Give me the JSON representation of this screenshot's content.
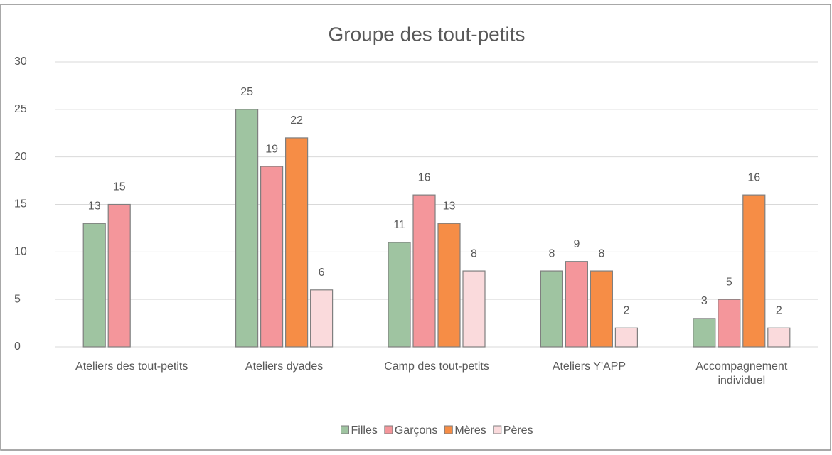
{
  "chart_data": {
    "type": "bar",
    "title": "Groupe des tout-petits",
    "categories": [
      "Ateliers des tout-petits",
      "Ateliers dyades",
      "Camp des tout-petits",
      "Ateliers Y'APP",
      "Accompagnement individuel"
    ],
    "series": [
      {
        "name": "Filles",
        "color": "#9fc4a1",
        "values": [
          13,
          25,
          11,
          8,
          3
        ]
      },
      {
        "name": "Garçons",
        "color": "#f4969b",
        "values": [
          15,
          19,
          16,
          9,
          5
        ]
      },
      {
        "name": "Mères",
        "color": "#f68d46",
        "values": [
          null,
          22,
          13,
          8,
          16
        ]
      },
      {
        "name": "Pères",
        "color": "#fadadc",
        "values": [
          null,
          6,
          8,
          2,
          2
        ]
      }
    ],
    "ylim": [
      0,
      30
    ],
    "yticks": [
      0,
      5,
      10,
      15,
      20,
      25,
      30
    ],
    "grid": true,
    "legend": "bottom"
  }
}
